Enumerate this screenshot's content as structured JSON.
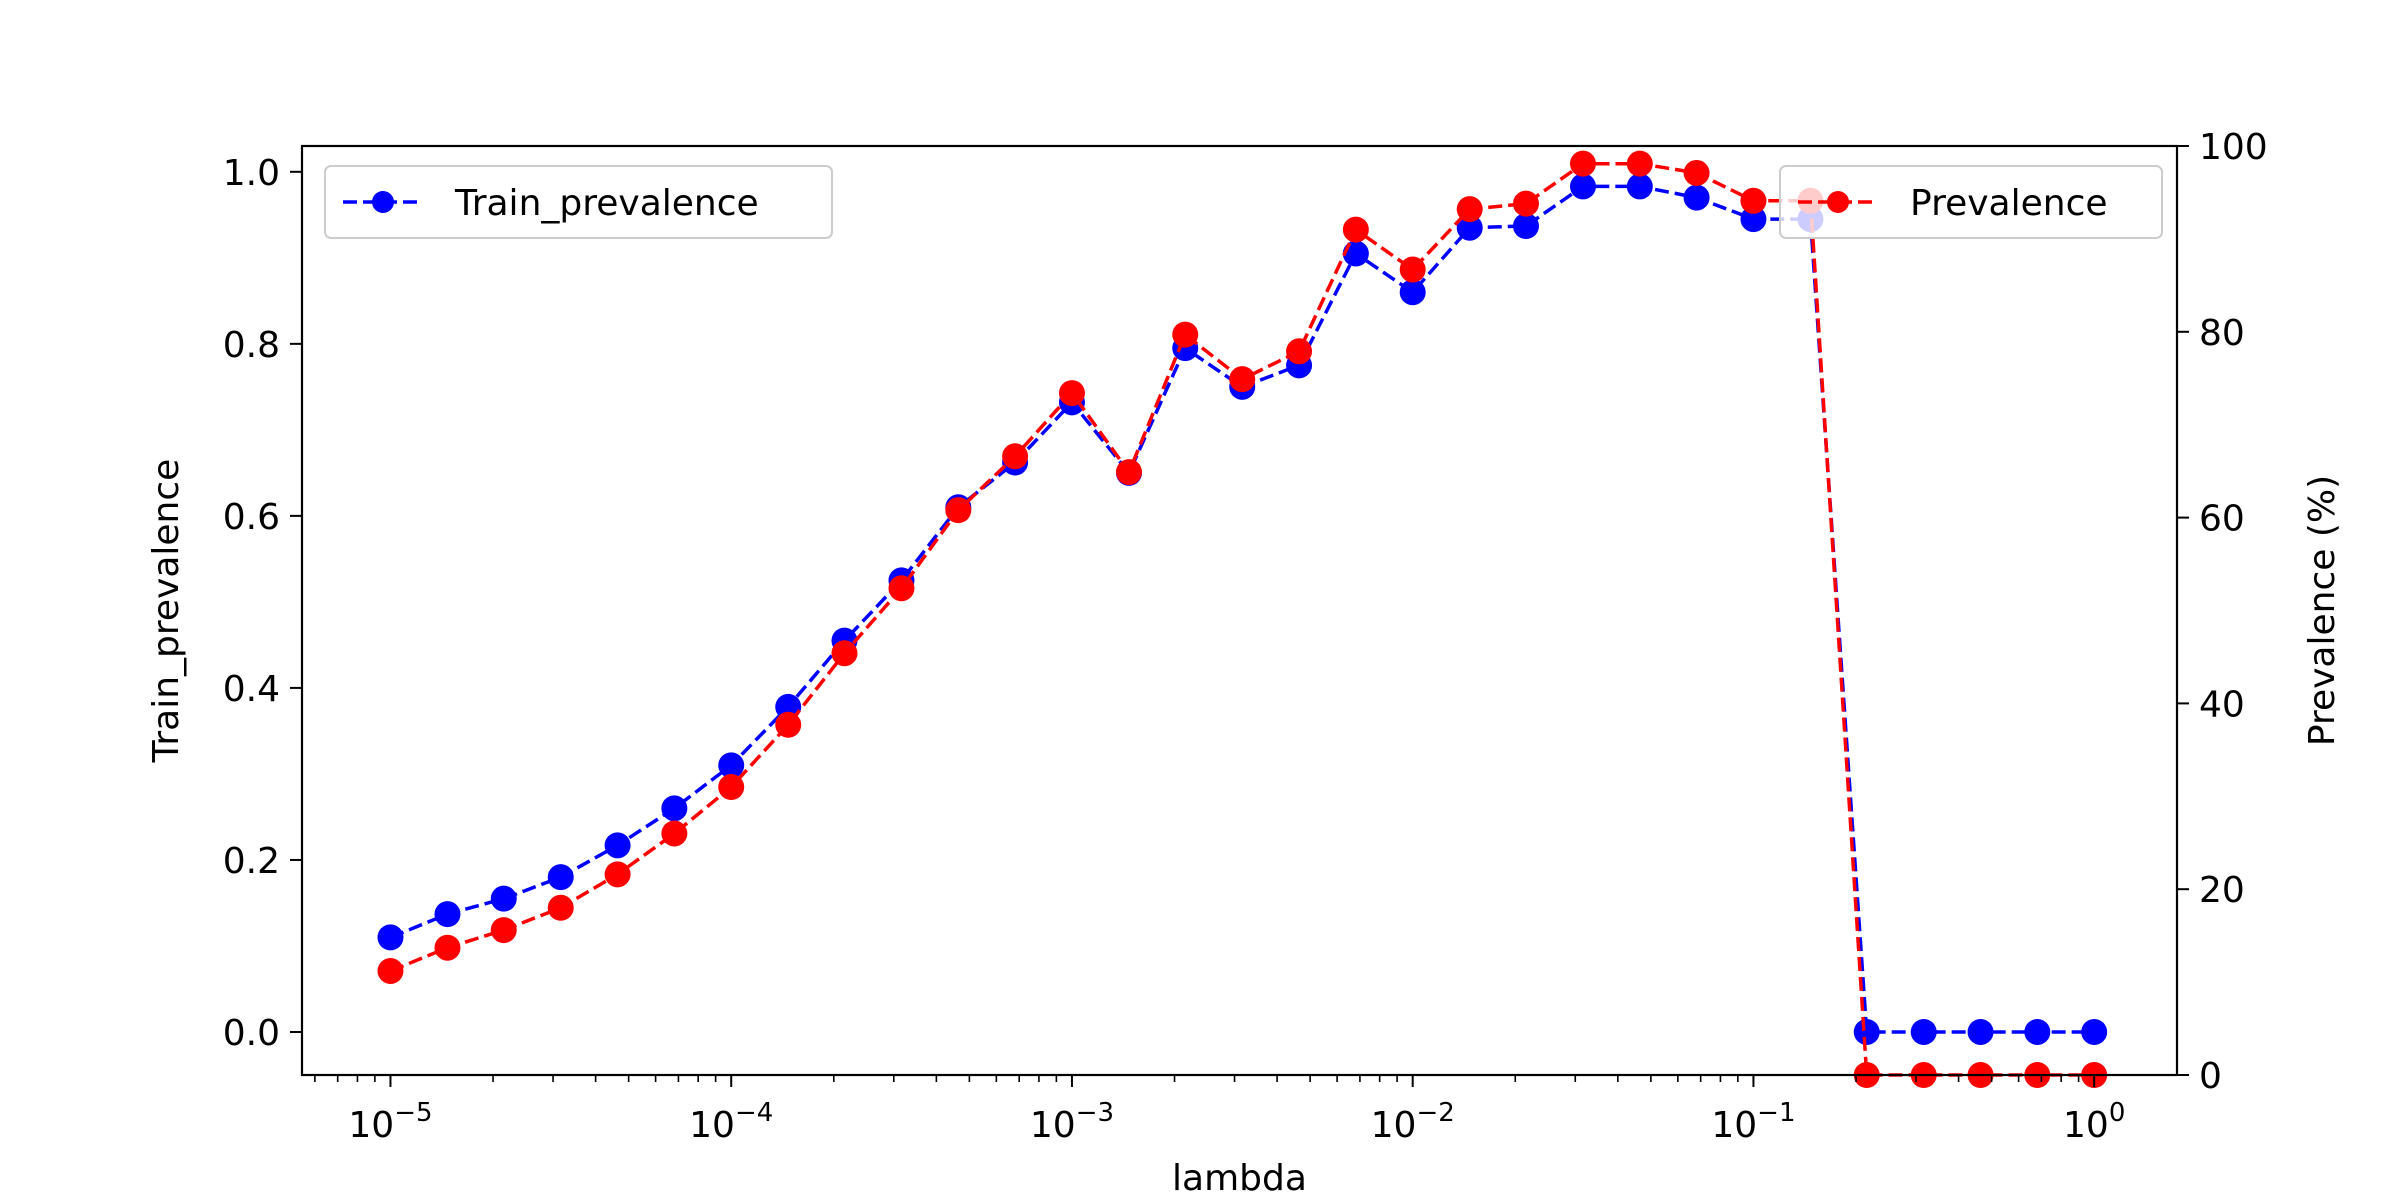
{
  "chart_data": {
    "type": "line",
    "x_scale": "log",
    "xlim": [
      5.5e-06,
      1.75
    ],
    "x_ticks": [
      {
        "value": 1e-05,
        "base": "10",
        "exp": "−5"
      },
      {
        "value": 0.0001,
        "base": "10",
        "exp": "−4"
      },
      {
        "value": 0.001,
        "base": "10",
        "exp": "−3"
      },
      {
        "value": 0.01,
        "base": "10",
        "exp": "−2"
      },
      {
        "value": 0.1,
        "base": "10",
        "exp": "−1"
      },
      {
        "value": 1,
        "base": "10",
        "exp": "0"
      }
    ],
    "xlabel": "lambda",
    "ylabel_left": "Train_prevalence",
    "ylabel_right": "Prevalence (%)",
    "ylim_left": [
      -0.05,
      1.03
    ],
    "ylim_right": [
      0,
      100
    ],
    "yticks_left": [
      "0.0",
      "0.2",
      "0.4",
      "0.6",
      "0.8",
      "1.0"
    ],
    "yticks_right": [
      "0",
      "20",
      "40",
      "60",
      "80",
      "100"
    ],
    "x": [
      1e-05,
      1.47e-05,
      2.15e-05,
      3.16e-05,
      4.64e-05,
      6.81e-05,
      0.0001,
      0.000147,
      0.000215,
      0.000316,
      0.000464,
      0.000681,
      0.001,
      0.00147,
      0.00215,
      0.00316,
      0.00464,
      0.00681,
      0.01,
      0.0147,
      0.0215,
      0.0316,
      0.0464,
      0.0681,
      0.1,
      0.147,
      0.215,
      0.316,
      0.464,
      0.681,
      1.0
    ],
    "series": [
      {
        "name": "Train_prevalence",
        "axis": "left",
        "color": "#0000ff",
        "linestyle": "dashed",
        "marker": "circle",
        "values": [
          0.11,
          0.137,
          0.155,
          0.18,
          0.217,
          0.26,
          0.31,
          0.378,
          0.455,
          0.525,
          0.61,
          0.662,
          0.732,
          0.65,
          0.795,
          0.75,
          0.775,
          0.905,
          0.86,
          0.935,
          0.937,
          0.983,
          0.983,
          0.97,
          0.945,
          0.945,
          0.0,
          0.0,
          0.0,
          0.0,
          0.0
        ]
      },
      {
        "name": "Prevalence",
        "axis": "right",
        "color": "#ff0000",
        "linestyle": "dashed",
        "marker": "circle",
        "values": [
          11.2,
          13.7,
          15.6,
          18.0,
          21.6,
          26.0,
          31.0,
          37.7,
          45.4,
          52.4,
          60.8,
          66.6,
          73.4,
          64.9,
          79.7,
          74.9,
          77.9,
          91.0,
          86.7,
          93.2,
          93.8,
          98.1,
          98.1,
          97.1,
          94.1,
          94.1,
          0.0,
          0.0,
          0.0,
          0.0,
          0.0
        ]
      }
    ],
    "legend_left": {
      "label": "Train_prevalence",
      "placement": "upper-left"
    },
    "legend_right": {
      "label": "Prevalence",
      "placement": "upper-right"
    },
    "grid": false
  }
}
